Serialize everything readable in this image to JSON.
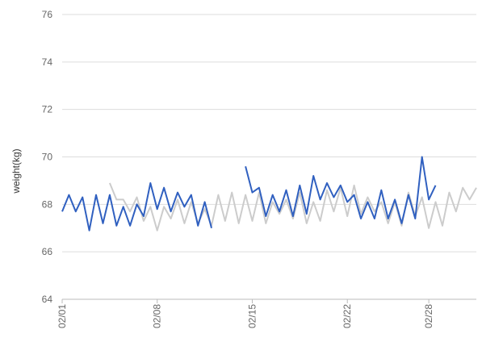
{
  "chart_data": {
    "type": "line",
    "ylabel": "weight(kg)",
    "xlabel": "",
    "ylim": [
      64,
      76
    ],
    "y_ticks": [
      "64",
      "66",
      "68",
      "70",
      "72",
      "74",
      "76"
    ],
    "x_ticks": [
      {
        "day": 0,
        "label": "02/01"
      },
      {
        "day": 7,
        "label": "02/08"
      },
      {
        "day": 14,
        "label": "02/15"
      },
      {
        "day": 21,
        "label": "02/22"
      },
      {
        "day": 27,
        "label": "02/28"
      }
    ],
    "xlim_days": [
      0,
      30.5
    ],
    "grid": true,
    "legend": "none",
    "series": [
      {
        "color": "#cccccc",
        "segments": [
          [
            [
              3.5,
              68.9
            ],
            [
              4.0,
              68.2
            ],
            [
              4.5,
              68.2
            ],
            [
              5.0,
              67.7
            ],
            [
              5.5,
              68.3
            ],
            [
              6.0,
              67.3
            ],
            [
              6.5,
              67.9
            ],
            [
              7.0,
              66.9
            ],
            [
              7.5,
              67.9
            ],
            [
              8.0,
              67.4
            ],
            [
              8.5,
              68.2
            ],
            [
              9.0,
              67.2
            ],
            [
              9.5,
              68.1
            ],
            [
              10.0,
              67.2
            ],
            [
              10.5,
              67.8
            ],
            [
              11.0,
              67.1
            ],
            [
              11.5,
              68.4
            ],
            [
              12.0,
              67.3
            ],
            [
              12.5,
              68.5
            ],
            [
              13.0,
              67.2
            ],
            [
              13.5,
              68.4
            ],
            [
              14.0,
              67.3
            ],
            [
              14.5,
              68.5
            ],
            [
              15.0,
              67.2
            ],
            [
              15.5,
              68.1
            ],
            [
              16.0,
              67.6
            ],
            [
              16.5,
              68.2
            ],
            [
              17.0,
              67.4
            ],
            [
              17.5,
              68.5
            ],
            [
              18.0,
              67.2
            ],
            [
              18.5,
              68.1
            ],
            [
              19.0,
              67.3
            ],
            [
              19.5,
              68.6
            ],
            [
              20.0,
              67.7
            ],
            [
              20.5,
              68.7
            ],
            [
              21.0,
              67.5
            ],
            [
              21.5,
              68.8
            ],
            [
              22.0,
              67.6
            ],
            [
              22.5,
              68.3
            ],
            [
              23.0,
              67.7
            ],
            [
              23.5,
              68.1
            ],
            [
              24.0,
              67.2
            ],
            [
              24.5,
              68.1
            ],
            [
              25.0,
              67.1
            ],
            [
              25.5,
              68.5
            ],
            [
              26.0,
              67.5
            ],
            [
              26.5,
              68.3
            ],
            [
              27.0,
              67.0
            ],
            [
              27.5,
              68.1
            ],
            [
              28.0,
              67.1
            ],
            [
              28.5,
              68.5
            ],
            [
              29.0,
              67.7
            ],
            [
              29.5,
              68.7
            ],
            [
              30.0,
              68.2
            ],
            [
              30.5,
              68.7
            ]
          ]
        ]
      },
      {
        "color": "#3060c0",
        "segments": [
          [
            [
              0.0,
              67.7
            ],
            [
              0.5,
              68.4
            ],
            [
              1.0,
              67.7
            ],
            [
              1.5,
              68.3
            ],
            [
              2.0,
              66.9
            ],
            [
              2.5,
              68.4
            ],
            [
              3.0,
              67.2
            ],
            [
              3.5,
              68.4
            ],
            [
              4.0,
              67.1
            ],
            [
              4.5,
              67.9
            ],
            [
              5.0,
              67.1
            ],
            [
              5.5,
              68.0
            ],
            [
              6.0,
              67.5
            ],
            [
              6.5,
              68.9
            ],
            [
              7.0,
              67.8
            ],
            [
              7.5,
              68.7
            ],
            [
              8.0,
              67.7
            ],
            [
              8.5,
              68.5
            ],
            [
              9.0,
              67.9
            ],
            [
              9.5,
              68.4
            ],
            [
              10.0,
              67.1
            ],
            [
              10.5,
              68.1
            ],
            [
              11.0,
              67.0
            ]
          ],
          [
            [
              13.5,
              69.6
            ],
            [
              14.0,
              68.5
            ],
            [
              14.5,
              68.7
            ],
            [
              15.0,
              67.5
            ],
            [
              15.5,
              68.4
            ],
            [
              16.0,
              67.7
            ],
            [
              16.5,
              68.6
            ],
            [
              17.0,
              67.5
            ],
            [
              17.5,
              68.8
            ],
            [
              18.0,
              67.6
            ],
            [
              18.5,
              69.2
            ],
            [
              19.0,
              68.2
            ],
            [
              19.5,
              68.9
            ],
            [
              20.0,
              68.3
            ],
            [
              20.5,
              68.8
            ],
            [
              21.0,
              68.1
            ],
            [
              21.5,
              68.4
            ],
            [
              22.0,
              67.4
            ],
            [
              22.5,
              68.1
            ],
            [
              23.0,
              67.4
            ],
            [
              23.5,
              68.6
            ],
            [
              24.0,
              67.4
            ],
            [
              24.5,
              68.2
            ],
            [
              25.0,
              67.2
            ],
            [
              25.5,
              68.4
            ],
            [
              26.0,
              67.4
            ],
            [
              26.5,
              70.0
            ],
            [
              27.0,
              68.2
            ],
            [
              27.5,
              68.8
            ]
          ]
        ]
      }
    ]
  }
}
